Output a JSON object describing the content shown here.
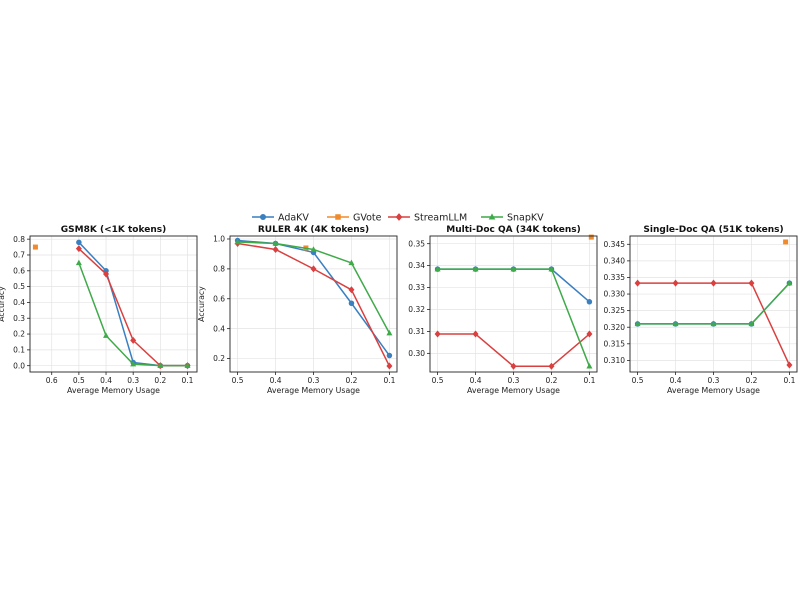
{
  "legend": {
    "placement": "top-center",
    "items": [
      {
        "name": "AdaKV",
        "color": "#3a7fc0",
        "marker": "circle"
      },
      {
        "name": "GVote",
        "color": "#f08a2a",
        "marker": "square"
      },
      {
        "name": "StreamLLM",
        "color": "#d9403f",
        "marker": "diamond"
      },
      {
        "name": "SnapKV",
        "color": "#3faa49",
        "marker": "triangle"
      }
    ]
  },
  "chart_data": [
    {
      "type": "line",
      "title": "GSM8K (<1K tokens)",
      "xlabel": "Average Memory Usage",
      "ylabel": "Accuracy",
      "x_reversed": true,
      "xlim": [
        0.065,
        0.68
      ],
      "ylim": [
        -0.04,
        0.82
      ],
      "xticks": [
        0.6,
        0.5,
        0.4,
        0.3,
        0.2,
        0.1
      ],
      "xtick_labels": [
        "0.6",
        "0.5",
        "0.4",
        "0.3",
        "0.2",
        "0.1"
      ],
      "yticks": [
        0.0,
        0.1,
        0.2,
        0.3,
        0.4,
        0.5,
        0.6,
        0.7,
        0.8
      ],
      "ytick_labels": [
        "0.0",
        "0.1",
        "0.2",
        "0.3",
        "0.4",
        "0.5",
        "0.6",
        "0.7",
        "0.8"
      ],
      "grid": true,
      "series": [
        {
          "name": "AdaKV",
          "x": [
            0.5,
            0.4,
            0.3,
            0.2,
            0.1
          ],
          "y": [
            0.78,
            0.6,
            0.02,
            0.0,
            0.0
          ]
        },
        {
          "name": "GVote",
          "x": [
            0.66
          ],
          "y": [
            0.75
          ]
        },
        {
          "name": "StreamLLM",
          "x": [
            0.5,
            0.4,
            0.3,
            0.2,
            0.1
          ],
          "y": [
            0.74,
            0.58,
            0.16,
            0.0,
            0.0
          ]
        },
        {
          "name": "SnapKV",
          "x": [
            0.5,
            0.4,
            0.3,
            0.2,
            0.1
          ],
          "y": [
            0.65,
            0.19,
            0.01,
            0.0,
            0.0
          ]
        }
      ]
    },
    {
      "type": "line",
      "title": "RULER 4K (4K tokens)",
      "xlabel": "Average Memory Usage",
      "ylabel": "Accuracy",
      "x_reversed": true,
      "xlim": [
        0.08,
        0.52
      ],
      "ylim": [
        0.11,
        1.02
      ],
      "xticks": [
        0.5,
        0.4,
        0.3,
        0.2,
        0.1
      ],
      "xtick_labels": [
        "0.5",
        "0.4",
        "0.3",
        "0.2",
        "0.1"
      ],
      "yticks": [
        0.2,
        0.4,
        0.6,
        0.8,
        1.0
      ],
      "ytick_labels": [
        "0.2",
        "0.4",
        "0.6",
        "0.8",
        "1.0"
      ],
      "grid": true,
      "series": [
        {
          "name": "AdaKV",
          "x": [
            0.5,
            0.4,
            0.3,
            0.2,
            0.1
          ],
          "y": [
            0.99,
            0.97,
            0.91,
            0.57,
            0.22
          ]
        },
        {
          "name": "GVote",
          "x": [
            0.32
          ],
          "y": [
            0.94
          ]
        },
        {
          "name": "StreamLLM",
          "x": [
            0.5,
            0.4,
            0.3,
            0.2,
            0.1
          ],
          "y": [
            0.97,
            0.93,
            0.8,
            0.66,
            0.15
          ]
        },
        {
          "name": "SnapKV",
          "x": [
            0.5,
            0.4,
            0.3,
            0.2,
            0.1
          ],
          "y": [
            0.98,
            0.97,
            0.93,
            0.84,
            0.37
          ]
        }
      ]
    },
    {
      "type": "line",
      "title": "Multi-Doc QA (34K tokens)",
      "xlabel": "Average Memory Usage",
      "ylabel": "",
      "x_reversed": true,
      "xlim": [
        0.08,
        0.52
      ],
      "ylim": [
        0.2915,
        0.3535
      ],
      "xticks": [
        0.5,
        0.4,
        0.3,
        0.2,
        0.1
      ],
      "xtick_labels": [
        "0.5",
        "0.4",
        "0.3",
        "0.2",
        "0.1"
      ],
      "yticks": [
        0.3,
        0.31,
        0.32,
        0.33,
        0.34,
        0.35
      ],
      "ytick_labels": [
        "0.30",
        "0.31",
        "0.32",
        "0.33",
        "0.34",
        "0.35"
      ],
      "grid": true,
      "series": [
        {
          "name": "AdaKV",
          "x": [
            0.5,
            0.4,
            0.3,
            0.2,
            0.1
          ],
          "y": [
            0.3384,
            0.3384,
            0.3384,
            0.3384,
            0.3235
          ]
        },
        {
          "name": "GVote",
          "x": [
            0.095
          ],
          "y": [
            0.353
          ]
        },
        {
          "name": "StreamLLM",
          "x": [
            0.5,
            0.4,
            0.3,
            0.2,
            0.1
          ],
          "y": [
            0.3088,
            0.3088,
            0.2941,
            0.2941,
            0.3088
          ]
        },
        {
          "name": "SnapKV",
          "x": [
            0.5,
            0.4,
            0.3,
            0.2,
            0.1
          ],
          "y": [
            0.3384,
            0.3384,
            0.3384,
            0.3384,
            0.2941
          ]
        }
      ]
    },
    {
      "type": "line",
      "title": "Single-Doc QA (51K tokens)",
      "xlabel": "Average Memory Usage",
      "ylabel": "",
      "x_reversed": true,
      "xlim": [
        0.08,
        0.52
      ],
      "ylim": [
        0.3065,
        0.3475
      ],
      "xticks": [
        0.5,
        0.4,
        0.3,
        0.2,
        0.1
      ],
      "xtick_labels": [
        "0.5",
        "0.4",
        "0.3",
        "0.2",
        "0.1"
      ],
      "yticks": [
        0.31,
        0.315,
        0.32,
        0.325,
        0.33,
        0.335,
        0.34,
        0.345
      ],
      "ytick_labels": [
        "0.310",
        "0.315",
        "0.320",
        "0.325",
        "0.330",
        "0.335",
        "0.340",
        "0.345"
      ],
      "grid": true,
      "series": [
        {
          "name": "AdaKV",
          "x": [
            0.5,
            0.4,
            0.3,
            0.2,
            0.1
          ],
          "y": [
            0.321,
            0.321,
            0.321,
            0.321,
            0.3333
          ]
        },
        {
          "name": "GVote",
          "x": [
            0.11
          ],
          "y": [
            0.3457
          ]
        },
        {
          "name": "StreamLLM",
          "x": [
            0.5,
            0.4,
            0.3,
            0.2,
            0.1
          ],
          "y": [
            0.3333,
            0.3333,
            0.3333,
            0.3333,
            0.3086
          ]
        },
        {
          "name": "SnapKV",
          "x": [
            0.5,
            0.4,
            0.3,
            0.2,
            0.1
          ],
          "y": [
            0.321,
            0.321,
            0.321,
            0.321,
            0.3333
          ]
        }
      ]
    }
  ]
}
